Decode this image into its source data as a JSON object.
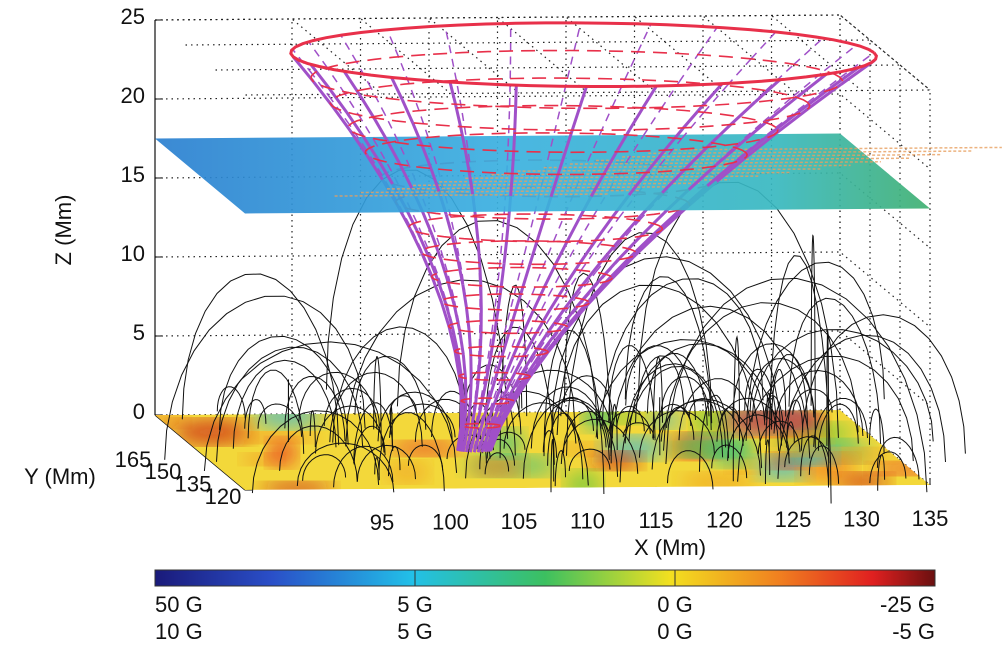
{
  "chart_data": {
    "type": "surface3d",
    "xlabel": "X (Mm)",
    "ylabel": "Y (Mm)",
    "zlabel": "Z (Mm)",
    "xlim": [
      85,
      135
    ],
    "xticks": [
      95,
      100,
      105,
      110,
      115,
      120,
      125,
      130,
      135
    ],
    "ylim": [
      120,
      165
    ],
    "yticks": [
      120,
      135,
      150,
      165
    ],
    "zlim": [
      0,
      25
    ],
    "zticks": [
      0,
      5,
      10,
      15,
      20,
      25
    ],
    "grid": true,
    "colorbar": {
      "labels": [
        [
          "50 G",
          "5 G",
          "0 G",
          "-25 G"
        ],
        [
          "10 G",
          "5 G",
          "0 G",
          "-5 G"
        ]
      ]
    }
  }
}
